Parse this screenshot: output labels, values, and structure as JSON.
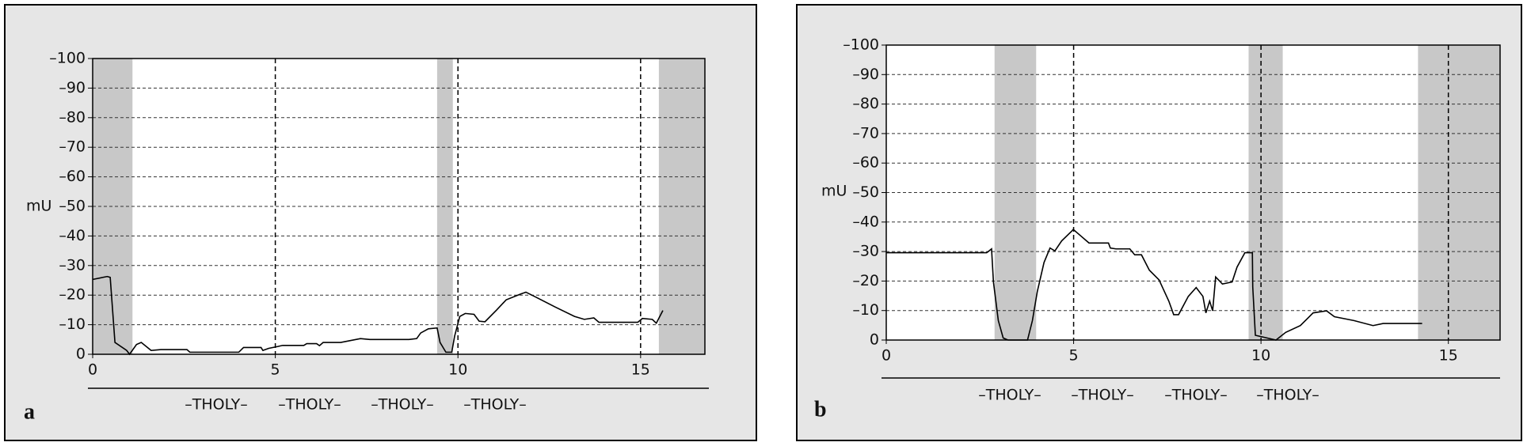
{
  "chart_data": [
    {
      "type": "line",
      "panel_label": "a",
      "ylabel": "mU",
      "annotations": [
        "–THOLY–",
        "–THOLY–",
        "–THOLY–",
        "–THOLY–"
      ],
      "xlim": [
        0,
        16.76
      ],
      "xticks": [
        0,
        5,
        10,
        15
      ],
      "ylim": [
        0,
        -100
      ],
      "yticks": [
        0,
        {
          "value": -10,
          "label": "–10"
        },
        {
          "value": -20,
          "label": "–20"
        },
        {
          "value": -30,
          "label": "–30"
        },
        {
          "value": -40,
          "label": "–40"
        },
        {
          "value": -50,
          "label": "–50"
        },
        {
          "value": -60,
          "label": "–60"
        },
        {
          "value": -70,
          "label": "–70"
        },
        {
          "value": -80,
          "label": "–80"
        },
        {
          "value": -90,
          "label": "–90"
        },
        {
          "value": -100,
          "label": "–100"
        }
      ],
      "grid": true,
      "shade_color": "#c8c8c8",
      "shaded_regions": [
        [
          0,
          1.09
        ],
        [
          9.43,
          9.86
        ],
        [
          15.5,
          16.76
        ]
      ],
      "vlines": [
        5,
        10,
        15
      ],
      "series": [
        {
          "color": "#000000",
          "x": [
            0,
            0.4,
            0.48,
            0.61,
            0.93,
            1.01,
            1.2,
            1.33,
            1.6,
            1.87,
            2.58,
            2.66,
            4.0,
            4.13,
            4.61,
            4.66,
            4.82,
            5.06,
            5.2,
            5.78,
            5.86,
            6.13,
            6.21,
            6.31,
            6.79,
            7.33,
            7.59,
            8.66,
            8.87,
            8.98,
            9.19,
            9.43,
            9.51,
            9.67,
            9.83,
            9.91,
            10.05,
            10.2,
            10.44,
            10.58,
            10.74,
            11.06,
            11.32,
            11.72,
            11.86,
            12.12,
            12.66,
            13.19,
            13.46,
            13.72,
            13.86,
            14.92,
            15.05,
            15.32,
            15.43,
            15.61
          ],
          "values": [
            -25.3,
            -26.3,
            -26,
            -4,
            -1.3,
            0,
            -3.3,
            -4,
            -1.3,
            -1.6,
            -1.6,
            -0.7,
            -0.7,
            -2.3,
            -2.3,
            -1.3,
            -2,
            -2.6,
            -3,
            -3,
            -3.6,
            -3.6,
            -2.9,
            -4,
            -4,
            -5.3,
            -5,
            -5,
            -5.3,
            -7.2,
            -8.6,
            -8.9,
            -4,
            -0.7,
            -0.7,
            -6.2,
            -12.8,
            -13.8,
            -13.5,
            -11.2,
            -11,
            -15,
            -18.4,
            -20.4,
            -21,
            -19.4,
            -16,
            -12.8,
            -11.8,
            -12.3,
            -10.8,
            -10.8,
            -12.1,
            -11.8,
            -10.5,
            -14.8
          ]
        }
      ]
    },
    {
      "type": "line",
      "panel_label": "b",
      "ylabel": "mU",
      "annotations": [
        "–THOLY–",
        "–THOLY–",
        "–THOLY–",
        "–THOLY–"
      ],
      "xlim": [
        0,
        16.38
      ],
      "xticks": [
        0,
        5,
        10,
        15
      ],
      "ylim": [
        0,
        -100
      ],
      "yticks": [
        0,
        {
          "value": -10,
          "label": "–10"
        },
        {
          "value": -20,
          "label": "–20"
        },
        {
          "value": -30,
          "label": "–30"
        },
        {
          "value": -40,
          "label": "–40"
        },
        {
          "value": -50,
          "label": "–50"
        },
        {
          "value": -60,
          "label": "–60"
        },
        {
          "value": -70,
          "label": "–70"
        },
        {
          "value": -80,
          "label": "–80"
        },
        {
          "value": -90,
          "label": "–90"
        },
        {
          "value": -100,
          "label": "–100"
        }
      ],
      "grid": true,
      "shade_color": "#c8c8c8",
      "shaded_regions": [
        [
          2.89,
          4.0
        ],
        [
          9.67,
          10.58
        ],
        [
          14.19,
          16.38
        ]
      ],
      "vlines": [
        5,
        10,
        15
      ],
      "series": [
        {
          "color": "#000000",
          "x": [
            0,
            2.68,
            2.81,
            2.86,
            2.99,
            3.12,
            3.25,
            3.77,
            3.9,
            4.03,
            4.21,
            4.37,
            4.5,
            4.68,
            4.94,
            4.99,
            5.2,
            5.41,
            5.93,
            5.98,
            6.13,
            6.5,
            6.63,
            6.81,
            7.02,
            7.28,
            7.54,
            7.67,
            7.8,
            8.06,
            8.27,
            8.45,
            8.53,
            8.63,
            8.71,
            8.79,
            8.97,
            9.23,
            9.36,
            9.57,
            9.77,
            9.78,
            9.85,
            10.4,
            10.66,
            11.05,
            11.39,
            11.75,
            11.96,
            12.48,
            12.99,
            13.26,
            14.3
          ],
          "values": [
            -29.6,
            -29.6,
            -30.9,
            -19.7,
            -6.6,
            -0.7,
            0,
            0,
            -6.6,
            -16.4,
            -26.3,
            -31.2,
            -30.2,
            -33.6,
            -36.8,
            -37.5,
            -35.2,
            -32.9,
            -32.9,
            -31.2,
            -30.9,
            -30.9,
            -28.9,
            -28.9,
            -23.7,
            -20.4,
            -13.2,
            -8.6,
            -8.6,
            -14.8,
            -17.8,
            -14.8,
            -9.2,
            -13.2,
            -9.9,
            -21.4,
            -19,
            -19.7,
            -24.7,
            -29.6,
            -29.6,
            -18,
            -1.6,
            0,
            -2.6,
            -4.9,
            -9.2,
            -9.9,
            -7.9,
            -6.6,
            -4.9,
            -5.6,
            -5.6
          ]
        }
      ]
    }
  ]
}
